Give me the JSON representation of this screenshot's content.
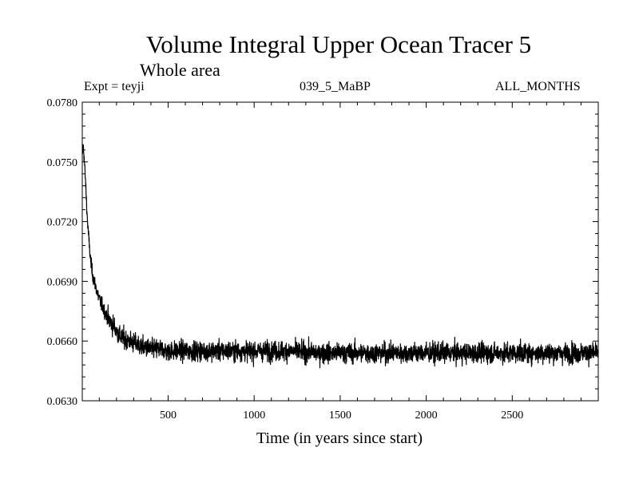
{
  "chart_data": {
    "type": "line",
    "title": "Volume Integral Upper Ocean Tracer 5",
    "subtitle": "Whole area",
    "annotations": {
      "expt": "Expt = teyji",
      "period": "039_5_MaBP",
      "months": "ALL_MONTHS"
    },
    "xlabel": "Time (in years since start)",
    "ylabel": "",
    "xlim": [
      1,
      3000
    ],
    "ylim": [
      0.063,
      0.078
    ],
    "xticks": [
      500,
      1000,
      1500,
      2000,
      2500
    ],
    "xtick_labels": [
      "500",
      "1000",
      "1500",
      "2000",
      "2500"
    ],
    "yticks": [
      0.063,
      0.066,
      0.069,
      0.072,
      0.075,
      0.078
    ],
    "ytick_labels": [
      "0.0630",
      "0.0660",
      "0.0690",
      "0.0720",
      "0.0750",
      "0.0780"
    ],
    "series": [
      {
        "name": "Tracer 5",
        "color": "#000000",
        "x": [
          0,
          5,
          10,
          20,
          30,
          40,
          50,
          60,
          70,
          80,
          90,
          100,
          120,
          140,
          160,
          180,
          200,
          225,
          250,
          275,
          300,
          350,
          400,
          450,
          500,
          600,
          700,
          800,
          900,
          1000,
          1200,
          1400,
          1600,
          1800,
          2000,
          2200,
          2400,
          2600,
          2800,
          3000
        ],
        "values": [
          0.075,
          0.0758,
          0.0755,
          0.074,
          0.0722,
          0.071,
          0.07,
          0.0694,
          0.069,
          0.0687,
          0.0684,
          0.0681,
          0.0677,
          0.0673,
          0.067,
          0.0668,
          0.0665,
          0.0662,
          0.0661,
          0.066,
          0.0659,
          0.0657,
          0.0656,
          0.0656,
          0.0655,
          0.0655,
          0.0655,
          0.0655,
          0.0655,
          0.0655,
          0.0655,
          0.0654,
          0.0654,
          0.0654,
          0.0654,
          0.0654,
          0.0654,
          0.0654,
          0.0654,
          0.0654
        ],
        "noise_std": 0.00045
      }
    ]
  }
}
